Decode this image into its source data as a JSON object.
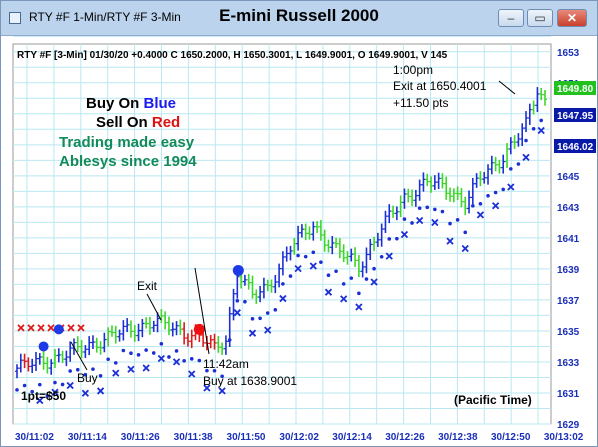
{
  "window": {
    "tabs_label": "RTY #F 1-Min/RTY #F 3-Min",
    "title": "E-mini Russell 2000",
    "buttons": {
      "minimize": "–",
      "maximize": "▭",
      "close": "✕"
    }
  },
  "chart_data": {
    "type": "bar",
    "subtype": "ohlc-bars",
    "info_line": "RTY #F [3-Min] 01/30/20  +0.4000 C 1650.2000, H 1650.3001, L 1649.9001, O 1649.9001, V 145",
    "ylim": [
      1629,
      1653.5
    ],
    "yticks": [
      1629,
      1631,
      1633,
      1635,
      1637,
      1639,
      1641,
      1643,
      1645,
      1647,
      1649,
      1651,
      1653
    ],
    "y_axis_position": "right",
    "grid": true,
    "xticks": [
      "30/11:02",
      "30/11:14",
      "30/11:26",
      "30/11:38",
      "30/11:50",
      "30/12:02",
      "30/12:14",
      "30/12:26",
      "30/12:38",
      "30/12:50",
      "30/13:02"
    ],
    "price_badges": [
      {
        "value": "1649.80",
        "color": "#22c11e"
      },
      {
        "value": "1647.95",
        "color": "#0a1aa8"
      },
      {
        "value": "1646.02",
        "color": "#0a1aa8"
      }
    ],
    "colors": {
      "up": "#1c2fd6",
      "neutral": "#3ed62a",
      "down": "#e01818",
      "marker": "#1c2fd6",
      "buy_dot": "#1e3ae6",
      "sell_dot": "#ee1010"
    },
    "series": [
      {
        "name": "bars",
        "bar_count": 140
      },
      {
        "name": "blue-dots"
      },
      {
        "name": "x-marks"
      }
    ],
    "annotations": {
      "promo": [
        "Buy On ",
        "Blue",
        "Sell On ",
        "Red",
        "Trading made easy",
        "Ablesys since 1994"
      ],
      "exit_label": "Exit",
      "buy_small": "Buy",
      "buy_time": "11:42am",
      "buy_price": "Buy at 1638.9001",
      "exit_time": "1:00pm",
      "exit_price": "Exit at 1650.4001",
      "profit": "+11.50 pts",
      "point_value": "1pt=$50",
      "timezone": "(Pacific Time)"
    }
  }
}
